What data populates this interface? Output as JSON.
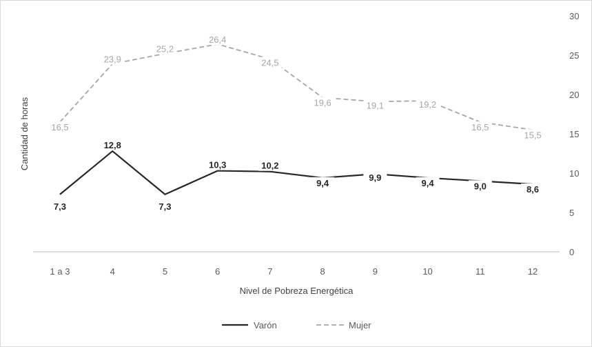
{
  "chart_data": {
    "type": "line",
    "title": "",
    "xlabel": "Nivel de Pobreza Energética",
    "ylabel": "Cantidad de horas",
    "categories": [
      "1 a 3",
      "4",
      "5",
      "6",
      "7",
      "8",
      "9",
      "10",
      "11",
      "12"
    ],
    "ylim": [
      0,
      30
    ],
    "yticks": [
      "0",
      "5",
      "10",
      "15",
      "20",
      "25",
      "30"
    ],
    "y_axis_side": "right",
    "grid": false,
    "legend_position": "bottom",
    "series": [
      {
        "name": "Varón",
        "values": [
          7.3,
          12.8,
          7.3,
          10.3,
          10.2,
          9.4,
          9.9,
          9.4,
          9.0,
          8.6
        ],
        "labels": [
          "7,3",
          "12,8",
          "7,3",
          "10,3",
          "10,2",
          "9,4",
          "9,9",
          "9,4",
          "9,0",
          "8,6"
        ],
        "color": "#262626",
        "style": "solid"
      },
      {
        "name": "Mujer",
        "values": [
          16.5,
          23.9,
          25.2,
          26.4,
          24.5,
          19.6,
          19.1,
          19.2,
          16.5,
          15.5
        ],
        "labels": [
          "16,5",
          "23,9",
          "25,2",
          "26,4",
          "24,5",
          "19,6",
          "19,1",
          "19,2",
          "16,5",
          "15,5"
        ],
        "color": "#a6a6a6",
        "style": "dashed"
      }
    ]
  }
}
